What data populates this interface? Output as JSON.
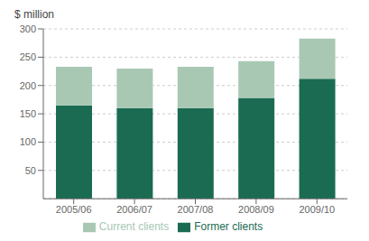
{
  "chart_data": {
    "type": "bar",
    "stacked": true,
    "ylabel": "$ million",
    "categories": [
      "2005/06",
      "2006/07",
      "2007/08",
      "2008/09",
      "2009/10"
    ],
    "series": [
      {
        "name": "Former clients",
        "color": "#1a6b52",
        "values": [
          165,
          160,
          160,
          178,
          212
        ]
      },
      {
        "name": "Current clients",
        "color": "#a8c8b4",
        "values": [
          68,
          70,
          73,
          65,
          71
        ]
      }
    ],
    "ylim": [
      0,
      300
    ],
    "yticks": [
      50,
      100,
      150,
      200,
      250,
      300
    ],
    "grid": true,
    "legend": "bottom"
  }
}
